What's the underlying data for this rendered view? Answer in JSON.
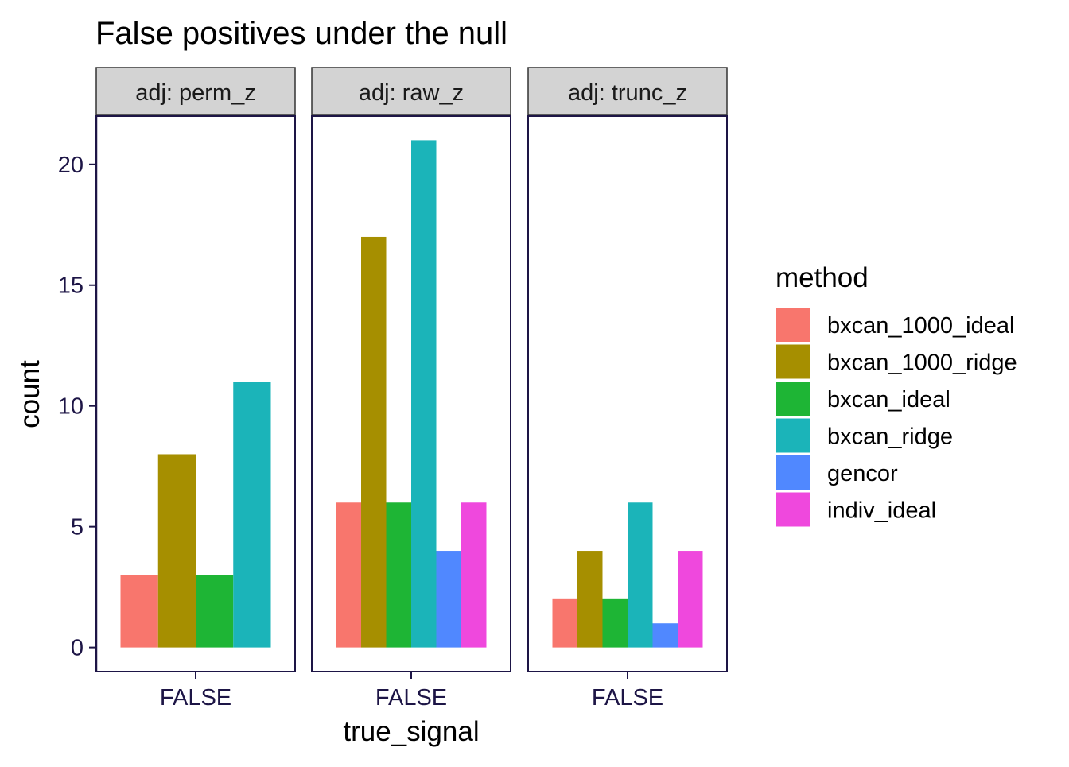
{
  "chart_data": {
    "type": "bar",
    "title": "False positives under the null",
    "xlabel": "true_signal",
    "ylabel": "count",
    "ylim": [
      -1,
      22
    ],
    "yticks": [
      0,
      5,
      10,
      15,
      20
    ],
    "grid": false,
    "legend": {
      "title": "method",
      "placement": "right",
      "items": [
        {
          "name": "bxcan_1000_ideal",
          "color": "#F8766D"
        },
        {
          "name": "bxcan_1000_ridge",
          "color": "#A68F00"
        },
        {
          "name": "bxcan_ideal",
          "color": "#1EB535"
        },
        {
          "name": "bxcan_ridge",
          "color": "#1BB4B9"
        },
        {
          "name": "gencor",
          "color": "#5088FF"
        },
        {
          "name": "indiv_ideal",
          "color": "#EF48DD"
        }
      ]
    },
    "panels": [
      {
        "strip": "adj: perm_z",
        "category": "FALSE",
        "bars": [
          {
            "method": "bxcan_1000_ideal",
            "value": 3
          },
          {
            "method": "bxcan_1000_ridge",
            "value": 8
          },
          {
            "method": "bxcan_ideal",
            "value": 3
          },
          {
            "method": "bxcan_ridge",
            "value": 11
          }
        ]
      },
      {
        "strip": "adj: raw_z",
        "category": "FALSE",
        "bars": [
          {
            "method": "bxcan_1000_ideal",
            "value": 6
          },
          {
            "method": "bxcan_1000_ridge",
            "value": 17
          },
          {
            "method": "bxcan_ideal",
            "value": 6
          },
          {
            "method": "bxcan_ridge",
            "value": 21
          },
          {
            "method": "gencor",
            "value": 4
          },
          {
            "method": "indiv_ideal",
            "value": 6
          }
        ]
      },
      {
        "strip": "adj: trunc_z",
        "category": "FALSE",
        "bars": [
          {
            "method": "bxcan_1000_ideal",
            "value": 2
          },
          {
            "method": "bxcan_1000_ridge",
            "value": 4
          },
          {
            "method": "bxcan_ideal",
            "value": 2
          },
          {
            "method": "bxcan_ridge",
            "value": 6
          },
          {
            "method": "gencor",
            "value": 1
          },
          {
            "method": "indiv_ideal",
            "value": 4
          }
        ]
      }
    ]
  }
}
